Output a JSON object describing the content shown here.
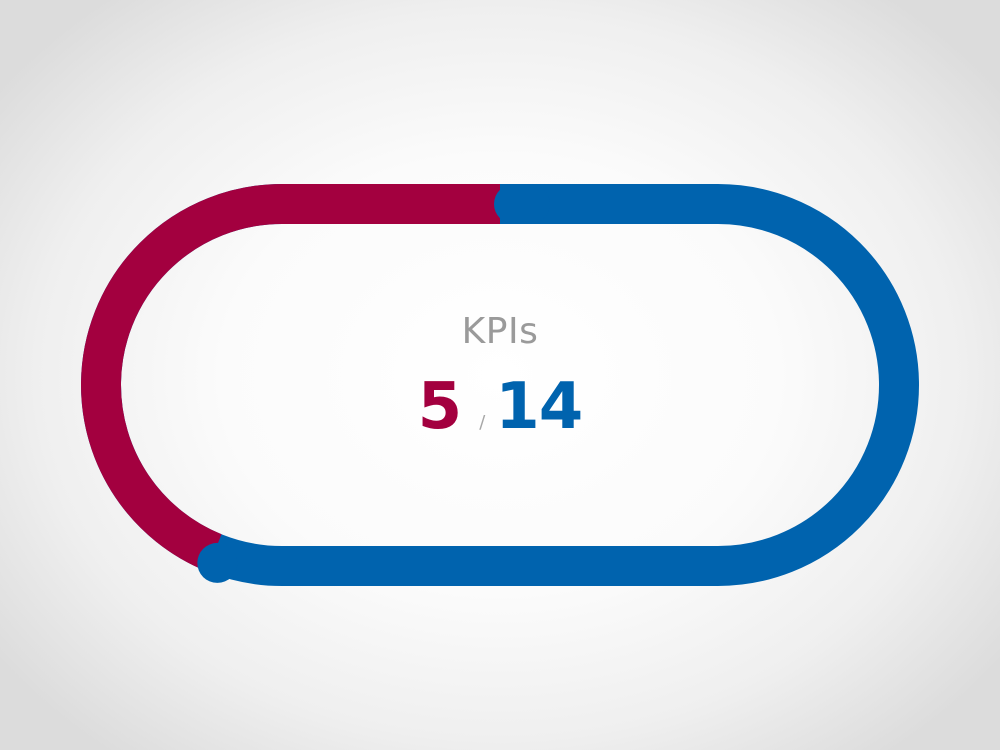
{
  "kpi_widget": {
    "label": "KPIs",
    "completed": "5",
    "separator": "/",
    "total": "14",
    "progress_fraction": 0.357
  },
  "colors": {
    "completed": "#a3003f",
    "total": "#0063ae",
    "label": "#9a9a9a",
    "separator": "#a7a7a7"
  }
}
